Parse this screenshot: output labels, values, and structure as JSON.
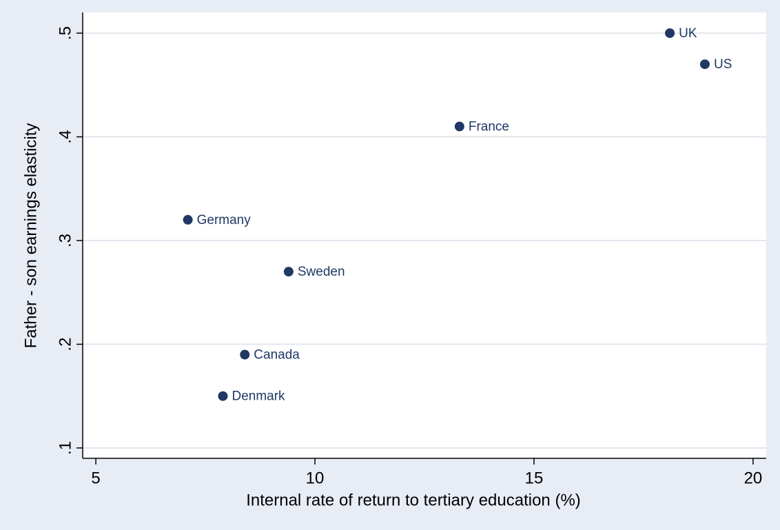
{
  "chart_data": {
    "type": "scatter",
    "x_label": "Internal rate of return to tertiary education (%)",
    "y_label": "Father - son earnings elasticity",
    "labels": [
      "UK",
      "US",
      "France",
      "Germany",
      "Sweden",
      "Canada",
      "Denmark"
    ],
    "x": [
      18.1,
      18.9,
      13.3,
      7.1,
      9.4,
      8.4,
      7.9
    ],
    "values": [
      0.5,
      0.47,
      0.41,
      0.32,
      0.27,
      0.19,
      0.15
    ],
    "color": "#1f3864",
    "xlim": [
      4.7,
      20.3
    ],
    "ylim": [
      0.09,
      0.52
    ],
    "xticks": [
      5,
      10,
      15,
      20
    ],
    "yticks": [
      {
        "value": 0.1,
        "label": ".1"
      },
      {
        "value": 0.2,
        "label": ".2"
      },
      {
        "value": 0.3,
        "label": ".3"
      },
      {
        "value": 0.4,
        "label": ".4"
      },
      {
        "value": 0.5,
        "label": ".5"
      }
    ],
    "grid": true
  }
}
